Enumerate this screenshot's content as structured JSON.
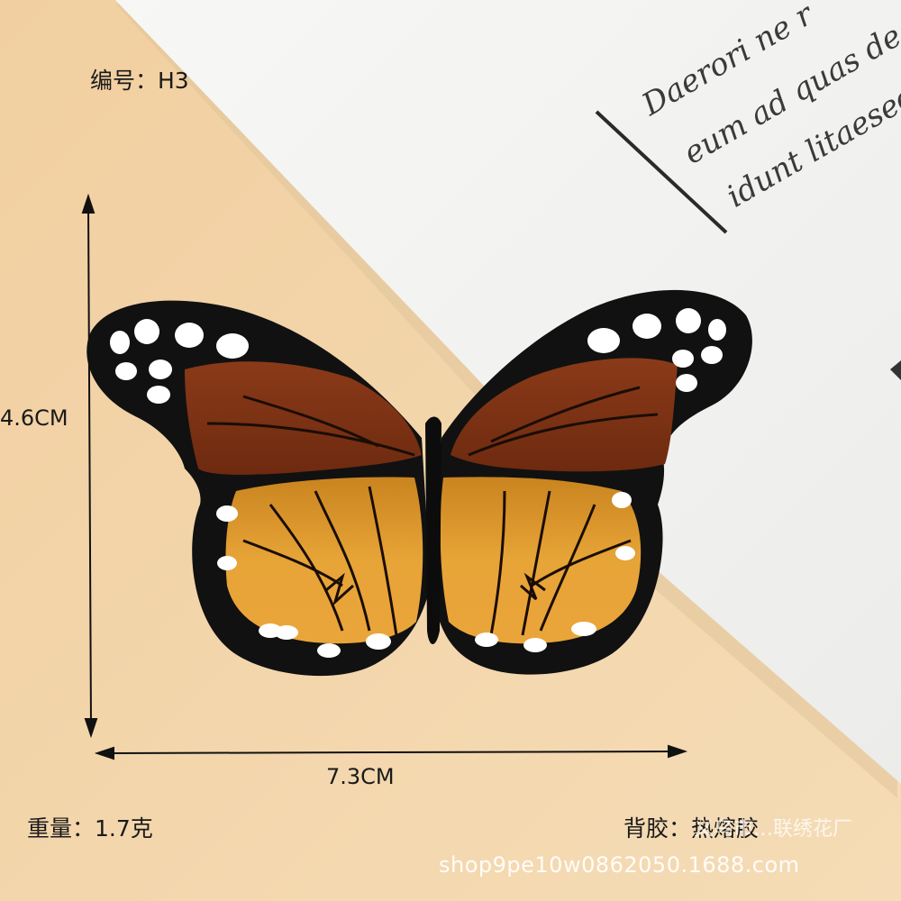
{
  "labels": {
    "code": "编号：H3",
    "height": "4.6CM",
    "width": "7.3CM",
    "weight": "重量：1.7克",
    "backing": "背胶：热熔胶"
  },
  "watermark": {
    "shop_url": "shop9pe10w0862050.1688.com",
    "factory": "义乌市…联绣花厂"
  },
  "paper_text": {
    "line1": "Daerori ne r",
    "line2": "eum ad quas de",
    "line3": "idunt litaesed m"
  },
  "colors": {
    "background": "#f2d2a6",
    "paper": "#f4f4f2",
    "outline": "#111111",
    "wing_upper": "#7a3115",
    "wing_lower": "#e39a2e",
    "spots": "#ffffff"
  },
  "subject": "butterfly-embroidered-patch"
}
